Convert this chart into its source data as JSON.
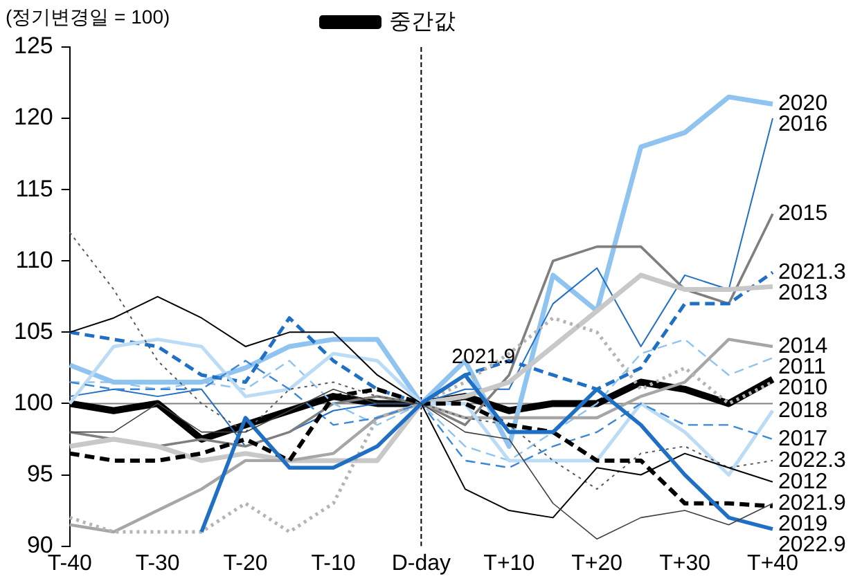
{
  "chart_data": {
    "type": "line",
    "ylabel": "(정기변경일 = 100)",
    "legend": "top",
    "categories": [
      "T-40",
      null,
      "T-30",
      null,
      "T-20",
      null,
      "T-10",
      null,
      "D-day",
      null,
      "T+10",
      null,
      "T+20",
      null,
      "T+30",
      null,
      "T+40"
    ],
    "ylim": [
      90,
      125
    ],
    "yticks": [
      90,
      95,
      100,
      105,
      110,
      115,
      120,
      125
    ],
    "grid": false,
    "marker": "none",
    "ref_lines": [
      {
        "axis": "y",
        "value": 100,
        "color": "#808080",
        "line_style": "solid"
      },
      {
        "axis": "x",
        "value": "D-day",
        "color": "#000000",
        "line_style": "dashed"
      }
    ],
    "annotations": [
      {
        "text": "2021.9",
        "y": 102.5
      }
    ],
    "series": [
      {
        "name": "중간값",
        "color": "#000000",
        "line_style": "solid",
        "values": [
          100,
          99.5,
          100,
          97.5,
          98.5,
          99.5,
          100.5,
          100,
          100,
          100.5,
          99.5,
          100,
          100,
          101.5,
          101,
          100,
          101.7
        ]
      },
      {
        "name": "2020",
        "color": "#8fc3f0",
        "line_style": "solid",
        "values": [
          102.7,
          101.5,
          101.5,
          101.5,
          102.5,
          104,
          104.5,
          104.5,
          100,
          103,
          97,
          109,
          106.5,
          118,
          119,
          121.5,
          121
        ]
      },
      {
        "name": "2016",
        "color": "#1f6fc5",
        "line_style": "solid",
        "values": [
          100.5,
          101,
          100.5,
          101,
          97,
          98,
          99.5,
          100,
          100,
          101,
          101,
          107,
          109.5,
          104,
          109,
          108,
          120
        ]
      },
      {
        "name": "2015",
        "color": "#7f7f7f",
        "line_style": "solid",
        "values": [
          98,
          97.5,
          97,
          97.5,
          97,
          98,
          100,
          100.5,
          100,
          98.5,
          102,
          110,
          111,
          111,
          108,
          107,
          113.3
        ]
      },
      {
        "name": "2021.3",
        "color": "#1f6fc5",
        "line_style": "dashed",
        "values": [
          105,
          104.5,
          104,
          102,
          101.5,
          106,
          103,
          101,
          100,
          102,
          103,
          102,
          101,
          102.5,
          107,
          107,
          109.2
        ]
      },
      {
        "name": "2013",
        "color": "#c8c8c8",
        "line_style": "solid",
        "values": [
          97,
          97.5,
          97,
          96,
          96.5,
          96,
          96,
          96,
          100,
          100.5,
          101.5,
          104,
          106.5,
          109,
          108,
          108,
          108.2
        ]
      },
      {
        "name": "2011",
        "color": "#8fc3f0",
        "line_style": "dashed",
        "values": [
          101.5,
          101.5,
          101,
          101.5,
          101,
          103,
          100,
          98.5,
          100,
          97,
          96,
          98,
          100,
          103.5,
          104.5,
          102,
          103.2
        ]
      },
      {
        "name": "2014",
        "color": "#a6a6a6",
        "line_style": "solid",
        "values": [
          91.5,
          91,
          92.5,
          94,
          96,
          96,
          96.5,
          99,
          100,
          99,
          99,
          99,
          99,
          100.5,
          101.5,
          104.5,
          104
        ]
      },
      {
        "name": "2010",
        "color": "#b4b4b4",
        "line_style": "dotted",
        "values": [
          92,
          91,
          91,
          91,
          93,
          91,
          93,
          99,
          100,
          101.5,
          103.5,
          106,
          105,
          101,
          102.5,
          100,
          101.5
        ]
      },
      {
        "name": "2018",
        "color": "#bcdcf5",
        "line_style": "solid",
        "values": [
          100,
          104,
          104.5,
          104,
          100.5,
          101,
          103.5,
          103,
          100,
          100,
          96,
          96,
          96,
          100,
          98,
          95,
          99.5
        ]
      },
      {
        "name": "2017",
        "color": "#3b87d6",
        "line_style": "dashed",
        "values": [
          101.5,
          101,
          101,
          101,
          103,
          101,
          98.5,
          99,
          100,
          96,
          95.5,
          97,
          98,
          100,
          98.5,
          98.5,
          97.5
        ]
      },
      {
        "name": "2022.3",
        "color": "#595959",
        "line_style": "dotted",
        "values": [
          112,
          108,
          103,
          100,
          98,
          101,
          101.5,
          100.5,
          100,
          99,
          98.5,
          96,
          94,
          96.5,
          97,
          95.5,
          96
        ]
      },
      {
        "name": "2012",
        "color": "#000000",
        "line_style": "solid",
        "values": [
          105,
          106,
          107.5,
          106,
          104,
          105,
          105,
          102,
          100,
          94,
          92.5,
          92,
          95.5,
          95,
          96.5,
          95.5,
          94.5
        ]
      },
      {
        "name": "2019",
        "color": "#000000",
        "line_style": "dashed",
        "values": [
          96.5,
          96,
          96,
          96.5,
          97.5,
          96,
          100.5,
          101,
          100,
          100,
          98.5,
          98,
          96,
          96,
          93,
          93,
          92.8
        ]
      },
      {
        "name": "2022.9",
        "color": "#1f6fc5",
        "line_style": "solid",
        "values": [
          null,
          null,
          null,
          91,
          99,
          95.5,
          95.5,
          97,
          100,
          102,
          98,
          98,
          101,
          98.5,
          95,
          92,
          91.2
        ]
      },
      {
        "name": "2021.9",
        "color": "#404040",
        "line_style": "solid",
        "values": [
          98,
          98,
          100,
          98,
          98,
          99.5,
          101,
          100,
          100,
          98,
          97.5,
          93,
          90.5,
          92,
          92.5,
          91.5,
          93
        ]
      }
    ]
  }
}
